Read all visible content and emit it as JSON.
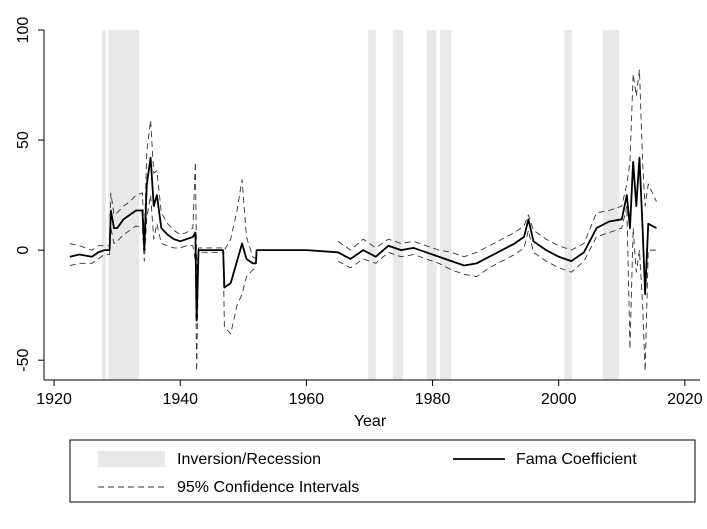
{
  "chart_data": {
    "type": "line",
    "xlabel": "Year",
    "xlim": [
      1918.4,
      2022.4
    ],
    "xticks": [
      1920,
      1940,
      1960,
      1980,
      2000,
      2020
    ],
    "ylim": [
      -59,
      100
    ],
    "yticks": [
      -50,
      0,
      50,
      100
    ],
    "grid": false,
    "shaded": {
      "name": "Inversion/Recession",
      "color": "#e8e8e8",
      "ranges": [
        [
          1927.6,
          1928.2
        ],
        [
          1928.6,
          1933.5
        ],
        [
          1969.8,
          1971
        ],
        [
          1973.7,
          1975.3
        ],
        [
          1979.1,
          1980.6
        ],
        [
          1981.2,
          1983
        ],
        [
          2000.9,
          2002.1
        ],
        [
          2007,
          2009.6
        ]
      ]
    },
    "x": [
      1922.5,
      1924,
      1926,
      1927,
      1928,
      1928.8,
      1929,
      1929.5,
      1930,
      1931,
      1932,
      1933,
      1934,
      1934.3,
      1934.7,
      1935.3,
      1935.8,
      1936.3,
      1937,
      1938,
      1939,
      1940,
      1941,
      1942,
      1942.4,
      1942.6,
      1942.9,
      1944,
      1946.8,
      1947,
      1948,
      1949,
      1949.8,
      1950.5,
      1951.5,
      1952,
      1952.1,
      1955,
      1960,
      1965,
      1967,
      1969,
      1971,
      1973,
      1975,
      1977,
      1979,
      1981,
      1983,
      1985,
      1987,
      1989,
      1991,
      1993,
      1994.5,
      1995.2,
      1996,
      1998,
      2000,
      2002,
      2004,
      2006,
      2008,
      2010,
      2010.8,
      2011.3,
      2011.8,
      2012.3,
      2012.8,
      2013.3,
      2013.7,
      2014.2,
      2015.5
    ],
    "series": [
      {
        "name": "Fama Coefficient",
        "color": "#000000",
        "values": [
          -3,
          -2,
          -3,
          -1,
          0,
          0,
          18,
          10,
          10,
          14,
          16,
          18,
          18,
          0,
          30,
          42,
          20,
          25,
          10,
          7,
          5,
          4,
          5,
          6,
          8,
          -32,
          0,
          0,
          0,
          -17,
          -15,
          -5,
          3,
          -4,
          -6,
          -6,
          0,
          0,
          0,
          -1,
          -4,
          0,
          -3,
          2,
          0,
          1,
          -1,
          -3,
          -5,
          -7,
          -6,
          -3,
          0,
          3,
          6,
          14,
          4,
          0,
          -3,
          -5,
          -1,
          10,
          13,
          14,
          25,
          10,
          40,
          20,
          42,
          10,
          -20,
          12,
          10
        ]
      },
      {
        "name": "95% Confidence Intervals",
        "color": "#333333",
        "lower": [
          -7,
          -6,
          -6,
          -4,
          -2,
          -2,
          10,
          3,
          4,
          7,
          9,
          11,
          10,
          -5,
          15,
          25,
          5,
          12,
          3,
          2,
          1,
          1,
          2,
          2,
          -5,
          -55,
          -1,
          -1,
          -1,
          -35,
          -38,
          -25,
          -20,
          -12,
          -9,
          -8,
          null,
          null,
          null,
          -5,
          -8,
          -4,
          -6,
          -1,
          -3,
          -2,
          -4,
          -6,
          -9,
          -11,
          -12,
          -8,
          -5,
          -2,
          1,
          9,
          -1,
          -5,
          -8,
          -10,
          -5,
          6,
          8,
          10,
          20,
          -45,
          10,
          -10,
          0,
          -25,
          -55,
          0,
          0
        ],
        "upper": [
          3,
          2,
          0,
          2,
          2,
          2,
          26,
          16,
          17,
          20,
          22,
          25,
          26,
          5,
          45,
          59,
          35,
          36,
          17,
          12,
          9,
          7,
          8,
          10,
          40,
          -10,
          1,
          1,
          1,
          0,
          5,
          18,
          32,
          6,
          -3,
          -4,
          null,
          null,
          null,
          4,
          0,
          5,
          1,
          5,
          3,
          4,
          2,
          0,
          -1,
          -3,
          -1,
          2,
          5,
          8,
          11,
          16,
          9,
          5,
          2,
          0,
          3,
          17,
          18,
          20,
          30,
          40,
          80,
          70,
          82,
          40,
          20,
          30,
          22
        ]
      }
    ]
  }
}
